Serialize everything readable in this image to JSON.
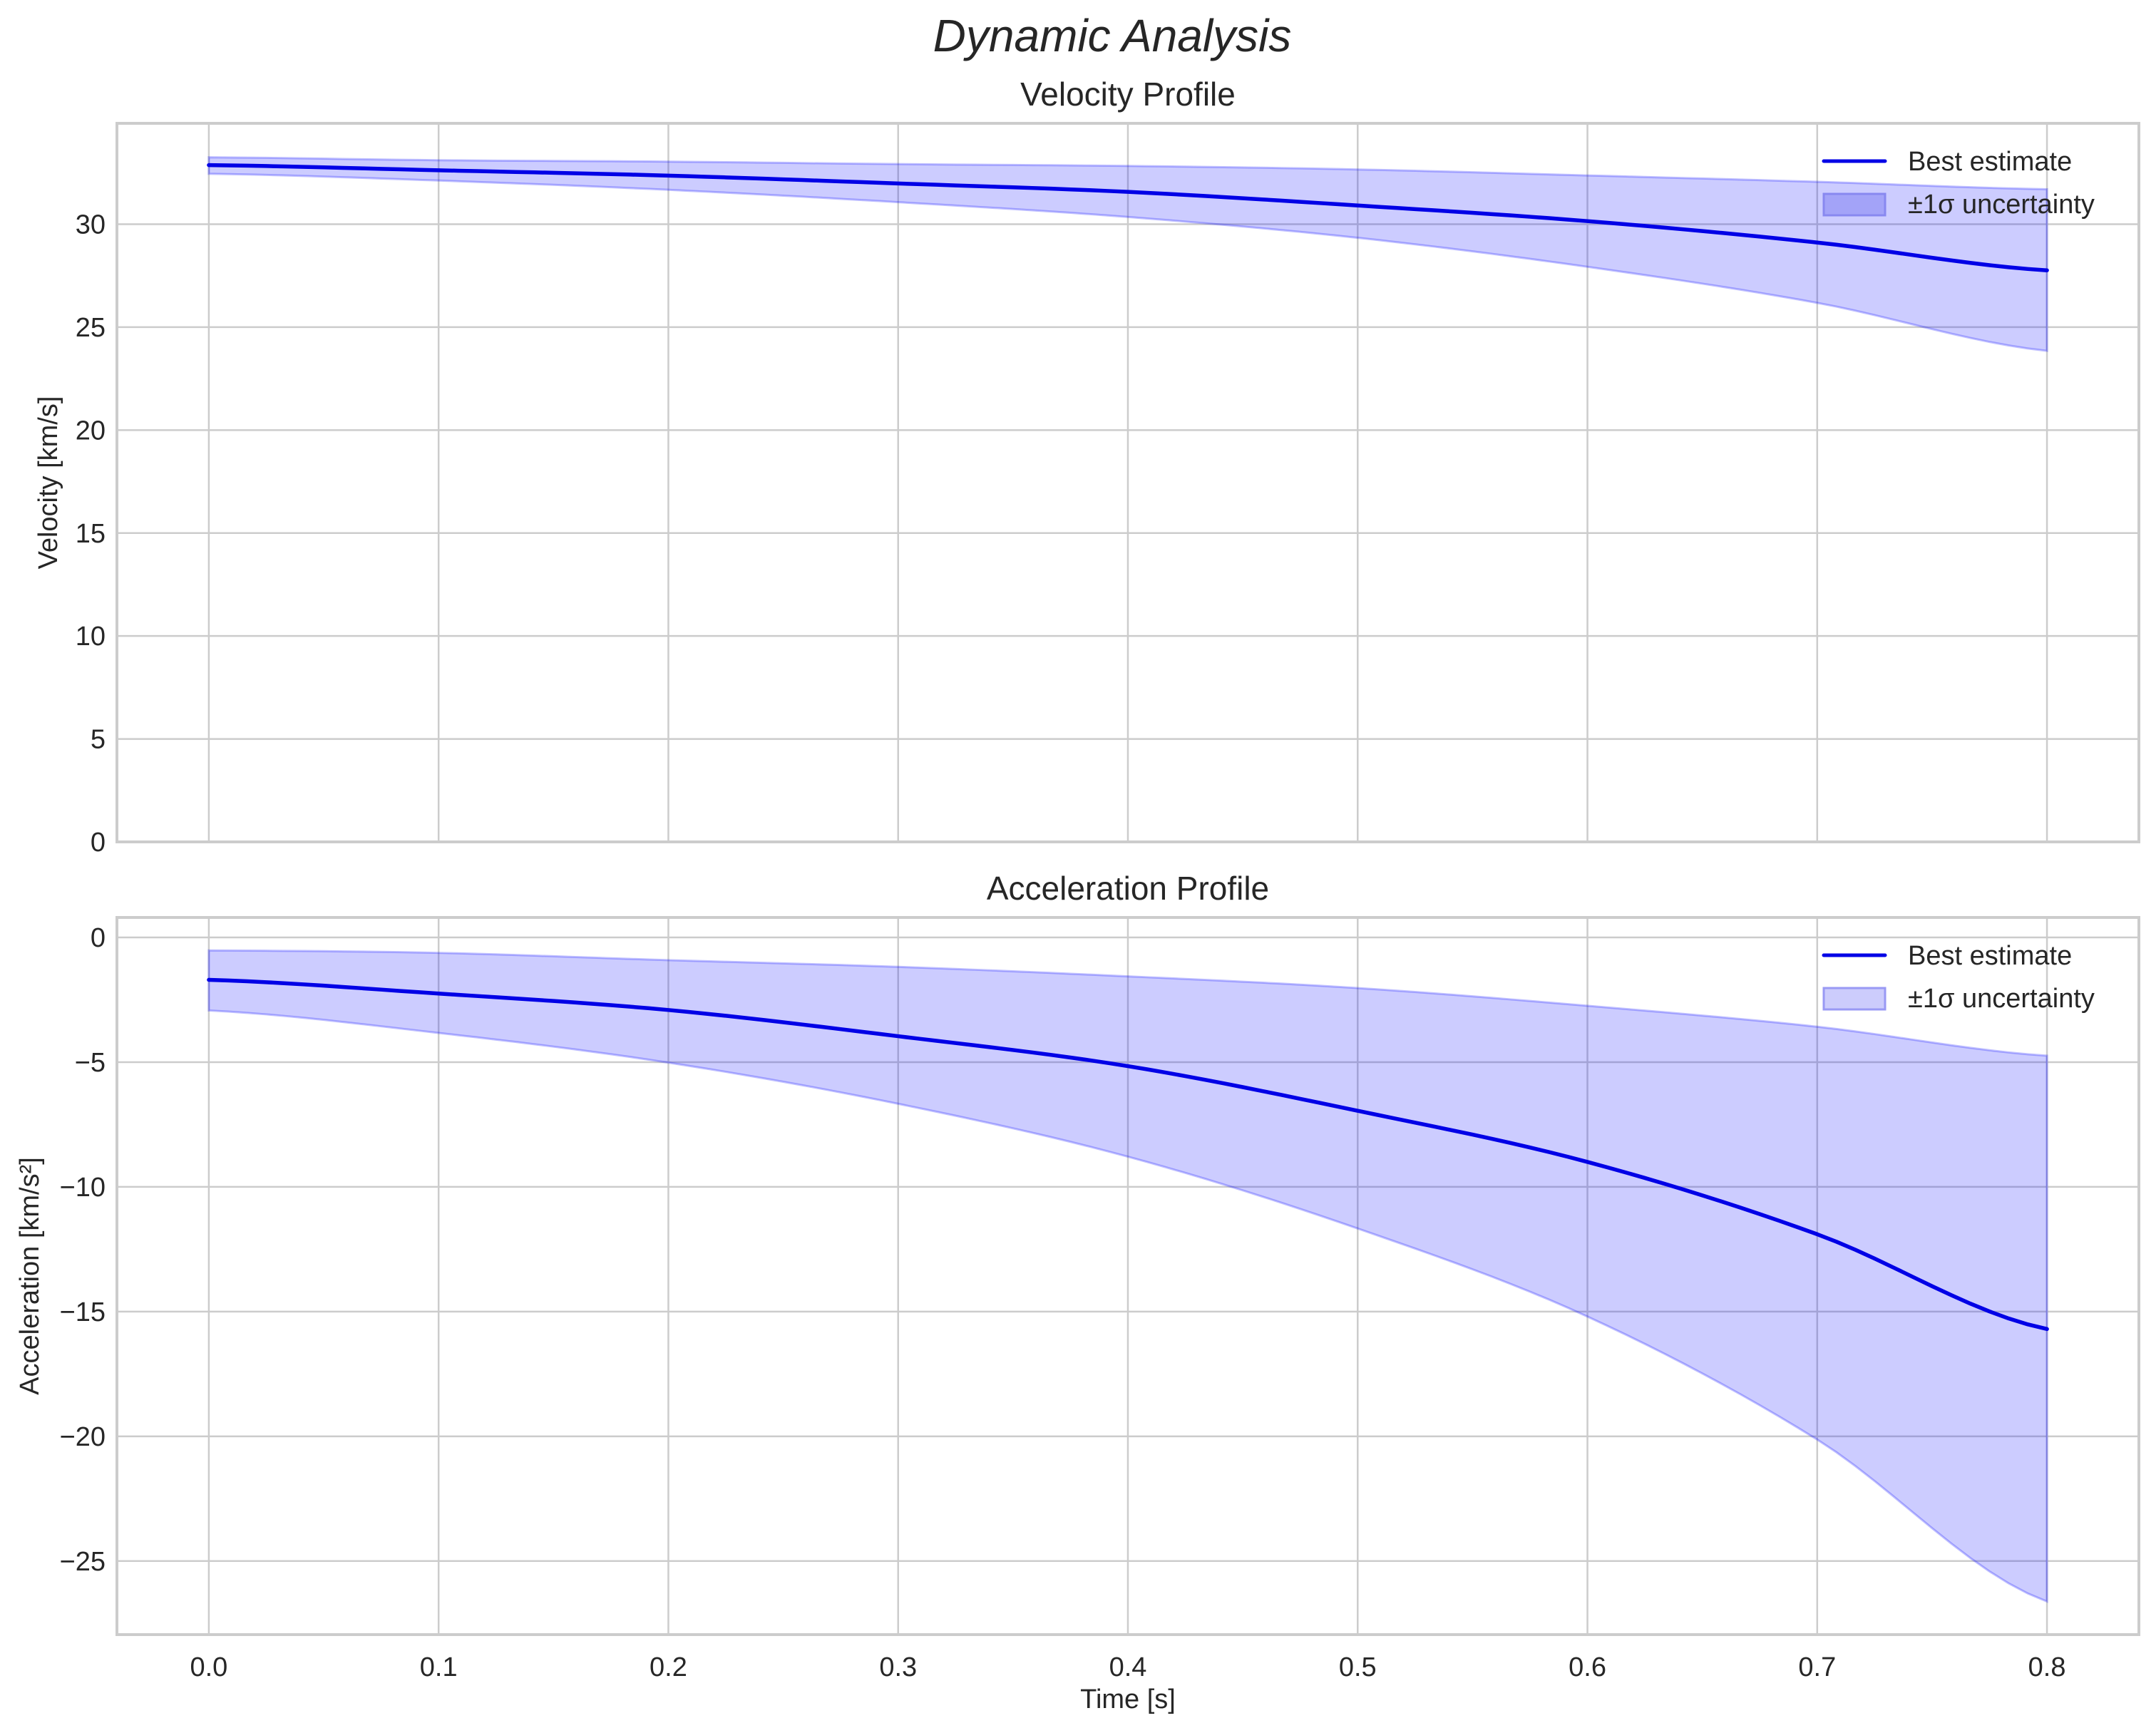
{
  "figure": {
    "suptitle": "Dynamic Analysis",
    "xlabel": "Time [s]"
  },
  "colors": {
    "line": "#0000e6",
    "band_fill": "#0000ff",
    "band_alpha": 0.2,
    "grid": "#cccccc",
    "text": "#262626"
  },
  "legend": {
    "line_label": "Best estimate",
    "band_label": "±1σ uncertainty"
  },
  "chart_data": [
    {
      "type": "line",
      "title": "Velocity Profile",
      "xlabel": "",
      "ylabel": "Velocity [km/s]",
      "x": [
        0.0,
        0.1,
        0.2,
        0.3,
        0.4,
        0.5,
        0.6,
        0.7,
        0.8
      ],
      "series": [
        {
          "name": "Best estimate",
          "values": [
            32.87,
            32.62,
            32.36,
            31.98,
            31.57,
            30.91,
            30.15,
            29.11,
            27.76
          ]
        },
        {
          "name": "±1σ uncertainty (upper)",
          "values": [
            33.25,
            33.11,
            33.04,
            32.92,
            32.83,
            32.66,
            32.37,
            32.06,
            31.7
          ]
        },
        {
          "name": "±1σ uncertainty (lower)",
          "values": [
            32.45,
            32.12,
            31.67,
            31.07,
            30.35,
            29.34,
            27.93,
            26.18,
            23.85
          ]
        }
      ],
      "xticks": [
        "0.0",
        "0.1",
        "0.2",
        "0.3",
        "0.4",
        "0.5",
        "0.6",
        "0.7",
        "0.8"
      ],
      "yticks": [
        "0",
        "5",
        "10",
        "15",
        "20",
        "25",
        "30"
      ],
      "ytick_values": [
        0,
        5,
        10,
        15,
        20,
        25,
        30
      ],
      "xlim": [
        -0.04,
        0.84
      ],
      "ylim": [
        0,
        34.9
      ],
      "grid": true,
      "legend_position": "upper right",
      "show_xticklabels": false
    },
    {
      "type": "line",
      "title": "Acceleration Profile",
      "xlabel": "Time [s]",
      "ylabel": "Acceleration [km/s²]",
      "x": [
        0.0,
        0.1,
        0.2,
        0.3,
        0.4,
        0.5,
        0.6,
        0.7,
        0.8
      ],
      "series": [
        {
          "name": "Best estimate",
          "values": [
            -1.7,
            -2.25,
            -2.91,
            -3.96,
            -5.16,
            -6.95,
            -9.0,
            -11.9,
            -15.7
          ]
        },
        {
          "name": "±1σ uncertainty (upper)",
          "values": [
            -0.52,
            -0.62,
            -0.91,
            -1.18,
            -1.56,
            -2.03,
            -2.74,
            -3.58,
            -4.74
          ]
        },
        {
          "name": "±1σ uncertainty (lower)",
          "values": [
            -2.93,
            -3.83,
            -5.02,
            -6.67,
            -8.79,
            -11.67,
            -15.2,
            -20.13,
            -26.62
          ]
        }
      ],
      "xticks": [
        "0.0",
        "0.1",
        "0.2",
        "0.3",
        "0.4",
        "0.5",
        "0.6",
        "0.7",
        "0.8"
      ],
      "yticks": [
        "0",
        "−5",
        "−10",
        "−15",
        "−20",
        "−25"
      ],
      "ytick_values": [
        0,
        -5,
        -10,
        -15,
        -20,
        -25
      ],
      "xlim": [
        -0.04,
        0.84
      ],
      "ylim": [
        -27.95,
        0.8
      ],
      "grid": true,
      "legend_position": "upper right",
      "show_xticklabels": true
    }
  ]
}
